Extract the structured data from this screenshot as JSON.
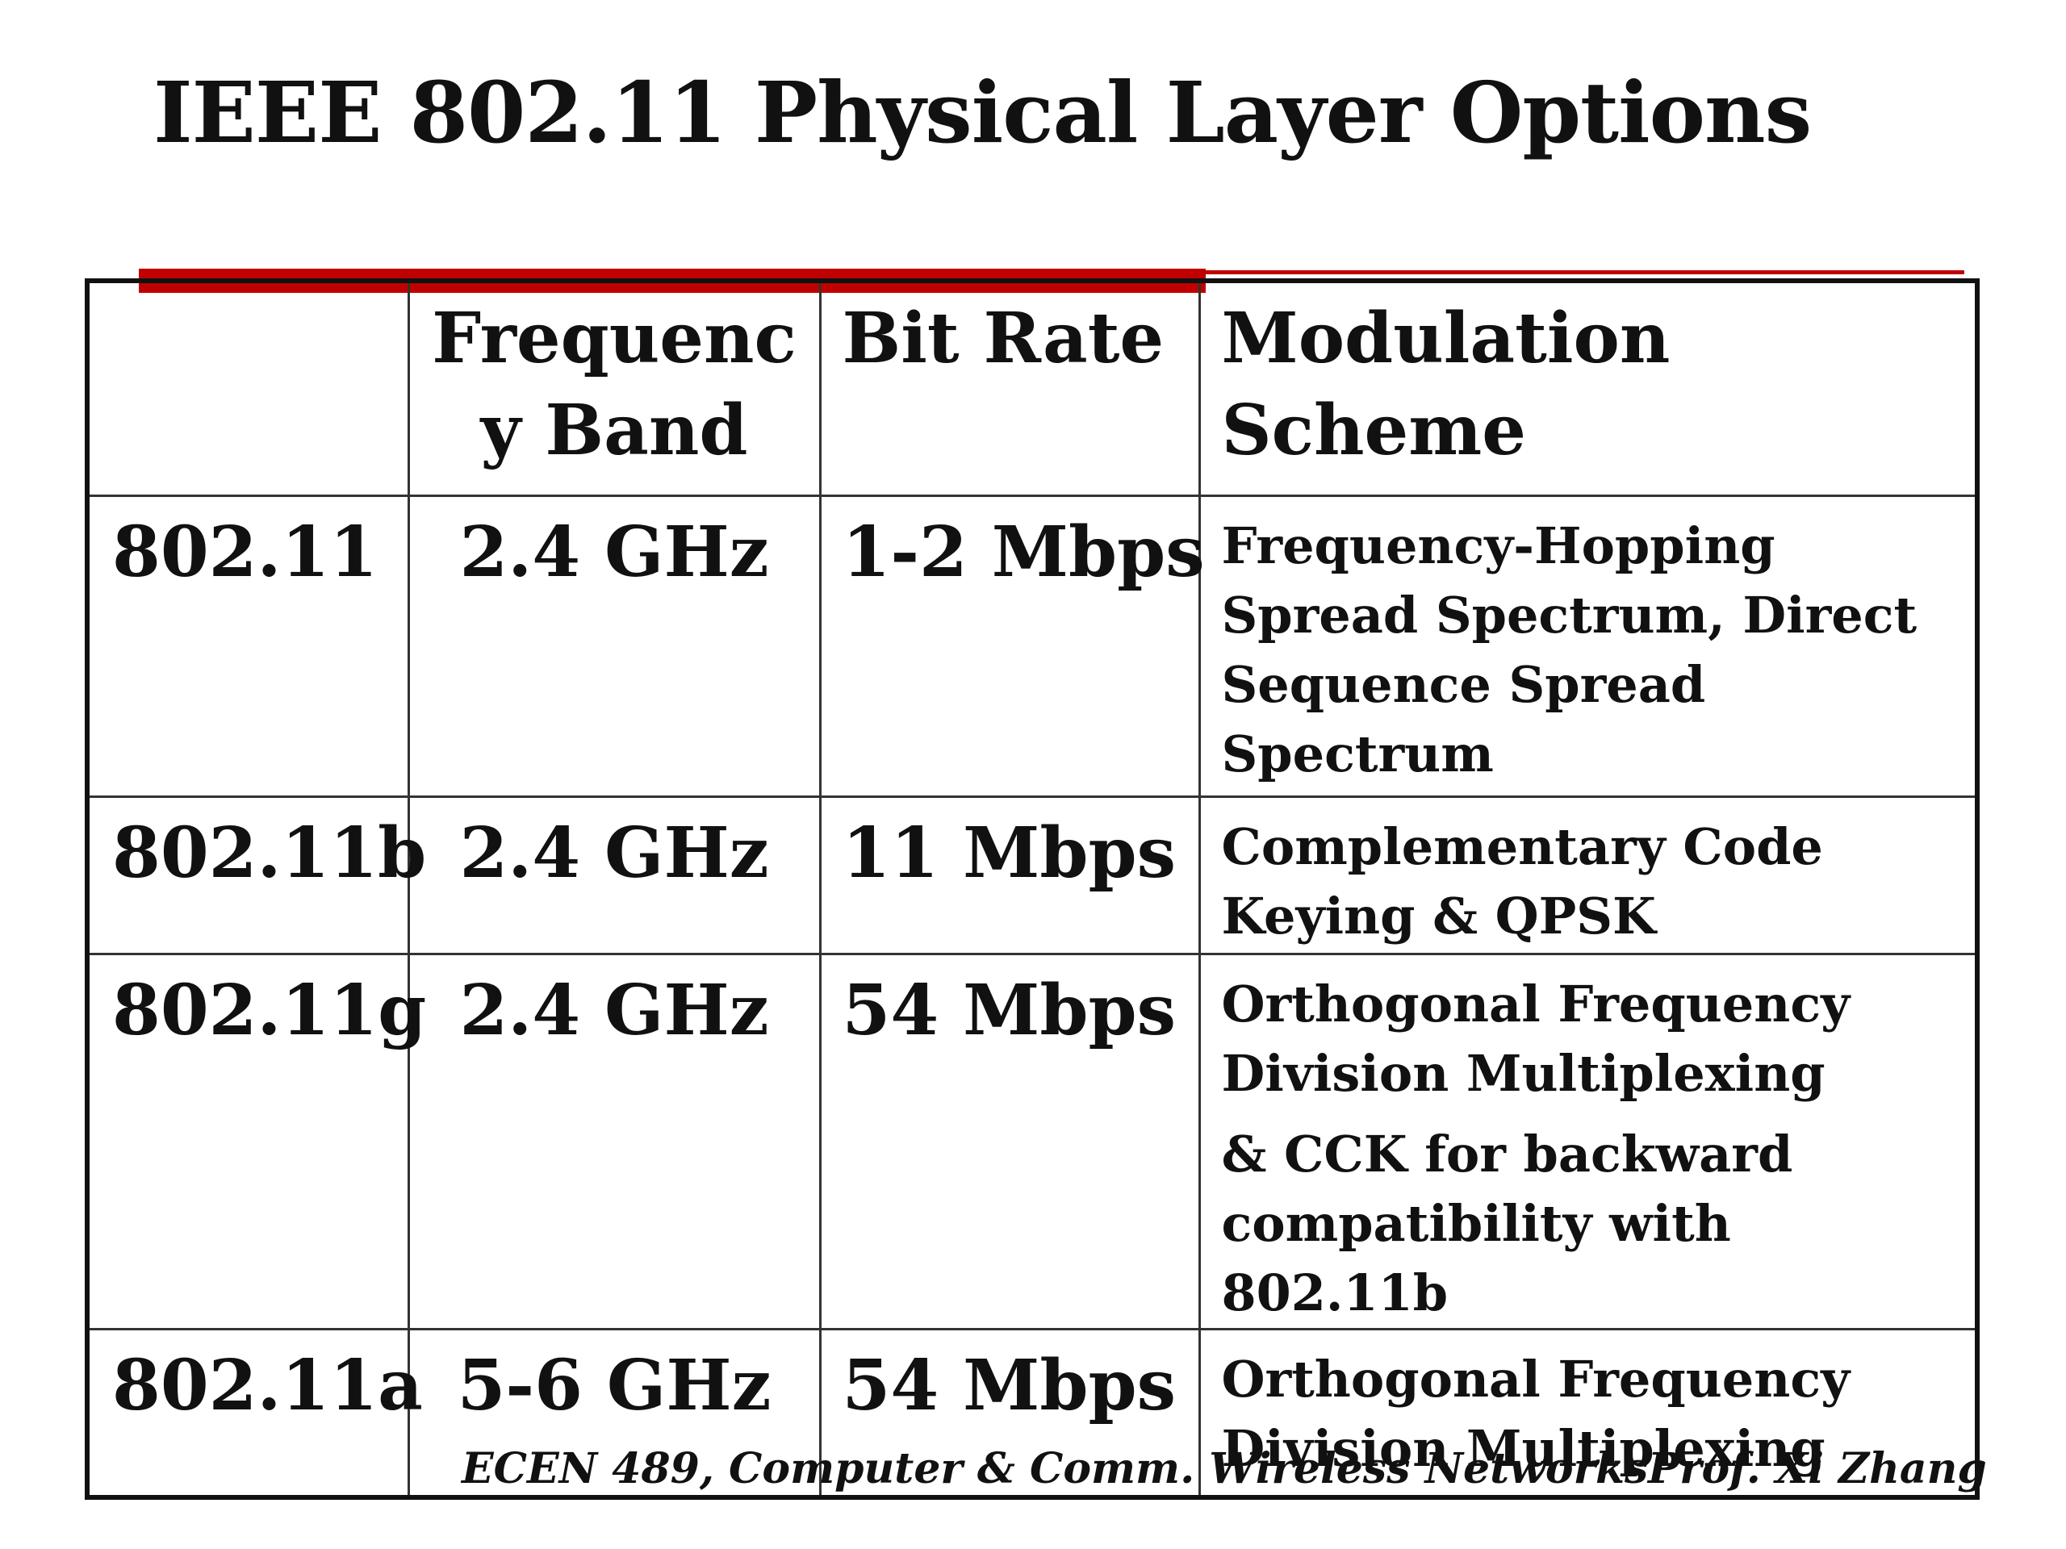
{
  "slide": {
    "title": "IEEE 802.11 Physical Layer Options",
    "accent_color": "#c00000"
  },
  "table": {
    "headers": {
      "standard": "",
      "freq_line1": "Frequenc",
      "freq_line2": "y Band",
      "bit_rate": "Bit Rate",
      "modulation": "Modulation Scheme"
    },
    "rows": [
      {
        "standard": "802.11",
        "frequency_band": "2.4 GHz",
        "bit_rate": "1-2 Mbps",
        "modulation": "Frequency-Hopping Spread Spectrum, Direct Sequence Spread Spectrum",
        "modulation_extra": ""
      },
      {
        "standard": "802.11b",
        "frequency_band": "2.4 GHz",
        "bit_rate": "11 Mbps",
        "modulation": "Complementary Code Keying & QPSK",
        "modulation_extra": ""
      },
      {
        "standard": "802.11g",
        "frequency_band": "2.4 GHz",
        "bit_rate": "54 Mbps",
        "modulation": "Orthogonal Frequency Division Multiplexing",
        "modulation_extra": "& CCK for backward compatibility with 802.11b"
      },
      {
        "standard": "802.11a",
        "frequency_band": "5-6 GHz",
        "bit_rate": "54 Mbps",
        "modulation": "Orthogonal Frequency Division Multiplexing",
        "modulation_extra": ""
      }
    ]
  },
  "footer": {
    "course": "ECEN 489, Computer & Comm. Wireless Networks",
    "author": "Prof. Xi Zhang"
  }
}
